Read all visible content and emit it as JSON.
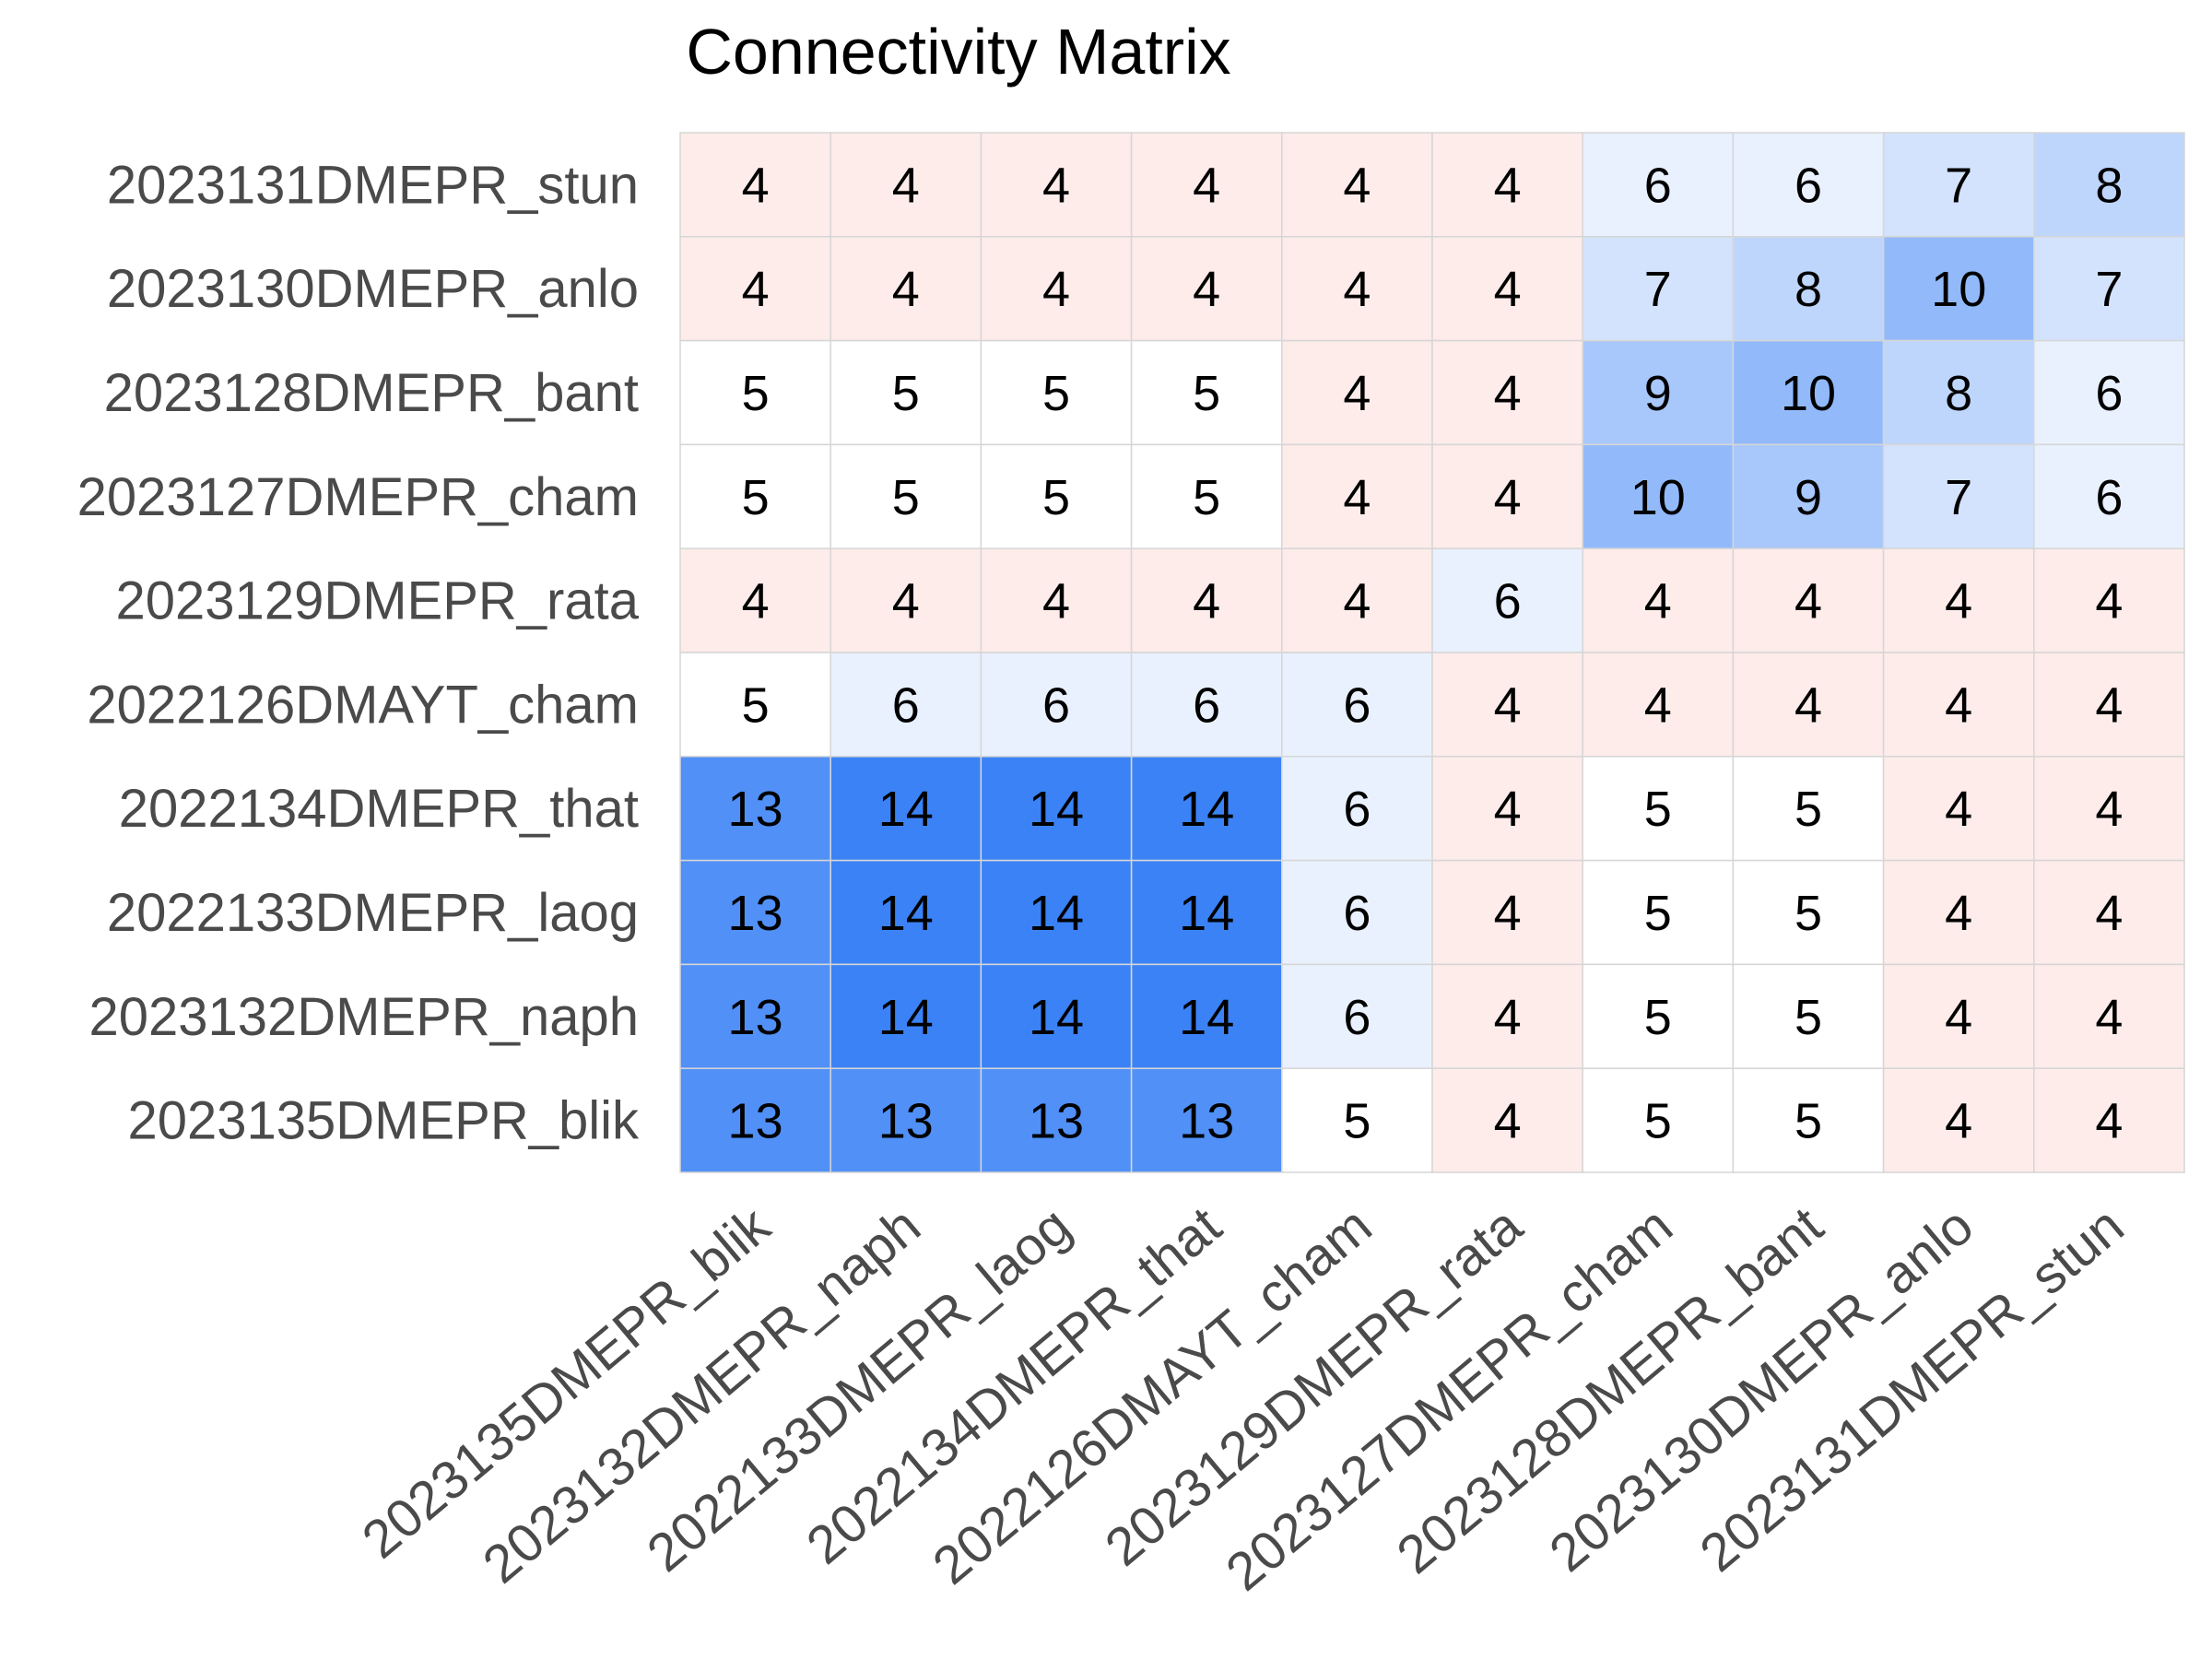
{
  "chart_data": {
    "type": "heatmap",
    "title": "Connectivity Matrix",
    "rows": [
      "2023131DMEPR_stun",
      "2023130DMEPR_anlo",
      "2023128DMEPR_bant",
      "2023127DMEPR_cham",
      "2023129DMEPR_rata",
      "2022126DMAYT_cham",
      "2022134DMEPR_that",
      "2022133DMEPR_laog",
      "2023132DMEPR_naph",
      "2023135DMEPR_blik"
    ],
    "columns": [
      "2023135DMEPR_blik",
      "2023132DMEPR_naph",
      "2022133DMEPR_laog",
      "2022134DMEPR_that",
      "2022126DMAYT_cham",
      "2023129DMEPR_rata",
      "2023127DMEPR_cham",
      "2023128DMEPR_bant",
      "2023130DMEPR_anlo",
      "2023131DMEPR_stun"
    ],
    "values": [
      [
        4,
        4,
        4,
        4,
        4,
        4,
        6,
        6,
        7,
        8
      ],
      [
        4,
        4,
        4,
        4,
        4,
        4,
        7,
        8,
        10,
        7
      ],
      [
        5,
        5,
        5,
        5,
        4,
        4,
        9,
        10,
        8,
        6
      ],
      [
        5,
        5,
        5,
        5,
        4,
        4,
        10,
        9,
        7,
        6
      ],
      [
        4,
        4,
        4,
        4,
        4,
        6,
        4,
        4,
        4,
        4
      ],
      [
        5,
        6,
        6,
        6,
        6,
        4,
        4,
        4,
        4,
        4
      ],
      [
        13,
        14,
        14,
        14,
        6,
        4,
        5,
        5,
        4,
        4
      ],
      [
        13,
        14,
        14,
        14,
        6,
        4,
        5,
        5,
        4,
        4
      ],
      [
        13,
        14,
        14,
        14,
        6,
        4,
        5,
        5,
        4,
        4
      ],
      [
        13,
        13,
        13,
        13,
        5,
        4,
        5,
        5,
        4,
        4
      ]
    ],
    "color_scale": {
      "low_color": "#fdecea",
      "center_color": "#ffffff",
      "high_color": "#3b82f6",
      "center_value": 5,
      "vmin": 4,
      "vmax": 14
    },
    "grid": true,
    "colorbar": false
  }
}
